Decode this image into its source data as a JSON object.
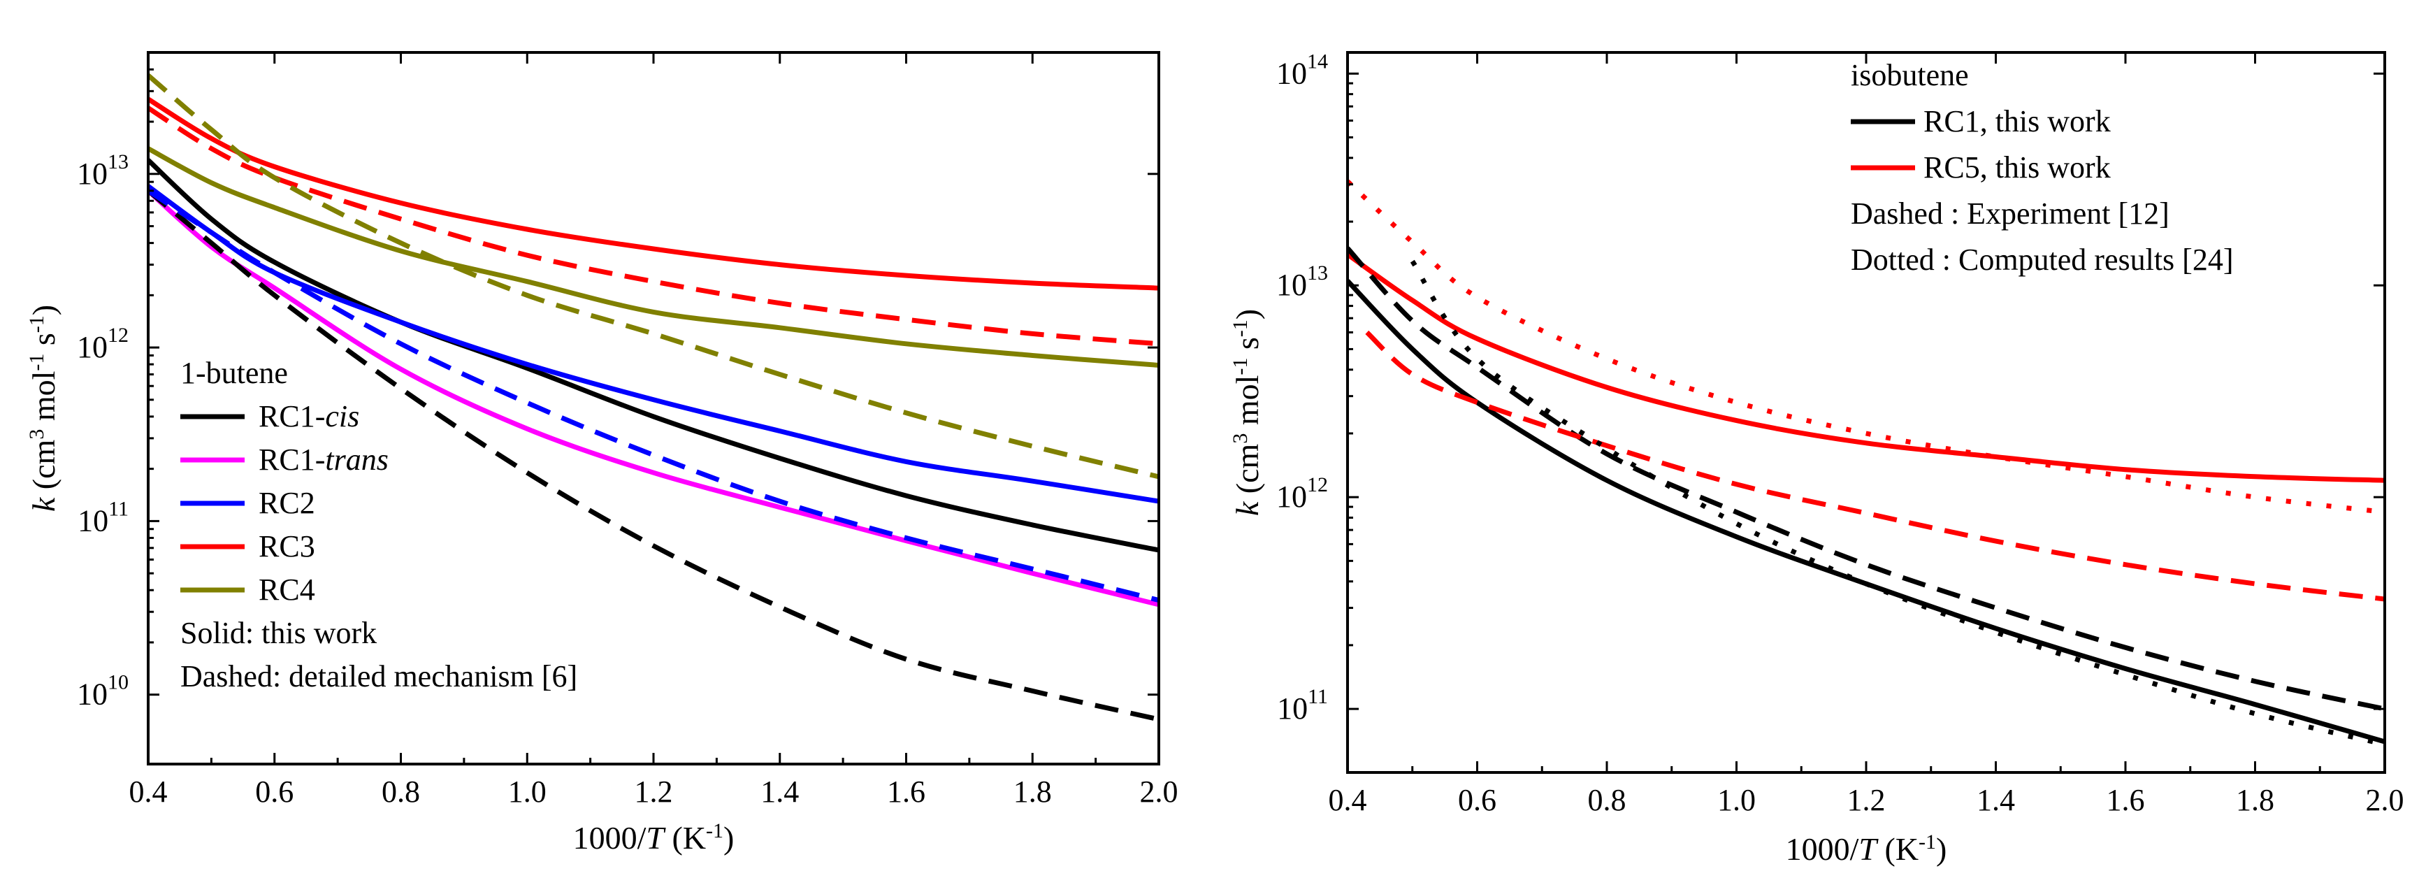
{
  "chart_data": [
    {
      "type": "line",
      "xlabel": "1000/T (K-1)",
      "ylabel": "k (cm3 mol-1 s-1)",
      "xlim": [
        0.4,
        2.0
      ],
      "ylim_log10": [
        9.6,
        13.7
      ],
      "yscale": "log",
      "x_ticks": [
        "0.4",
        "0.6",
        "0.8",
        "1.0",
        "1.2",
        "1.4",
        "1.6",
        "1.8",
        "2.0"
      ],
      "y_ticks": [
        {
          "base": "10",
          "exp": "10",
          "log": 10
        },
        {
          "base": "10",
          "exp": "11",
          "log": 11
        },
        {
          "base": "10",
          "exp": "12",
          "log": 12
        },
        {
          "base": "10",
          "exp": "13",
          "log": 13
        }
      ],
      "legend_title": "1-butene",
      "legend_position": "bottom-left",
      "notes": [
        "Solid: this work",
        "Dashed: detailed mechanism [6]"
      ],
      "series": [
        {
          "name": "RC1-",
          "name_italic": "cis",
          "color": "#000000",
          "dash": "solid",
          "x": [
            0.4,
            0.5,
            0.6,
            0.8,
            1.0,
            1.2,
            1.4,
            1.6,
            1.8,
            2.0
          ],
          "y": [
            12000000000000.0,
            5500000000000.0,
            3100000000000.0,
            1400000000000.0,
            760000000000.0,
            400000000000.0,
            230000000000.0,
            140000000000.0,
            95000000000.0,
            68000000000.0
          ]
        },
        {
          "name": "RC1-",
          "name_italic": "trans",
          "color": "#ff00ff",
          "dash": "solid",
          "x": [
            0.4,
            0.5,
            0.6,
            0.8,
            1.0,
            1.2,
            1.4,
            1.6,
            1.8,
            2.0
          ],
          "y": [
            8000000000000.0,
            3800000000000.0,
            2200000000000.0,
            750000000000.0,
            340000000000.0,
            190000000000.0,
            120000000000.0,
            77000000000.0,
            50000000000.0,
            33000000000.0
          ]
        },
        {
          "name": "RC2",
          "name_italic": "",
          "color": "#0000ff",
          "dash": "solid",
          "x": [
            0.4,
            0.5,
            0.6,
            0.8,
            1.0,
            1.2,
            1.4,
            1.6,
            1.8,
            2.0
          ],
          "y": [
            8500000000000.0,
            4600000000000.0,
            2700000000000.0,
            1400000000000.0,
            800000000000.0,
            500000000000.0,
            330000000000.0,
            220000000000.0,
            170000000000.0,
            130000000000.0
          ]
        },
        {
          "name": "RC3",
          "name_italic": "",
          "color": "#ff0000",
          "dash": "solid",
          "x": [
            0.4,
            0.5,
            0.6,
            0.8,
            1.0,
            1.2,
            1.4,
            1.6,
            1.8,
            2.0
          ],
          "y": [
            27000000000000.0,
            16000000000000.0,
            11000000000000.0,
            6800000000000.0,
            4800000000000.0,
            3700000000000.0,
            3000000000000.0,
            2600000000000.0,
            2350000000000.0,
            2200000000000.0
          ]
        },
        {
          "name": "RC4",
          "name_italic": "",
          "color": "#808000",
          "dash": "solid",
          "x": [
            0.4,
            0.5,
            0.6,
            0.8,
            1.0,
            1.2,
            1.4,
            1.6,
            1.8,
            2.0
          ],
          "y": [
            14000000000000.0,
            8900000000000.0,
            6400000000000.0,
            3600000000000.0,
            2400000000000.0,
            1600000000000.0,
            1300000000000.0,
            1050000000000.0,
            900000000000.0,
            790000000000.0
          ]
        },
        {
          "name": "RC1-cis (dashed)",
          "legend": false,
          "color": "#000000",
          "dash": "dashed",
          "x": [
            0.4,
            0.5,
            0.6,
            0.8,
            1.0,
            1.2,
            1.4,
            1.6,
            1.8,
            2.0
          ],
          "y": [
            8000000000000.0,
            4000000000000.0,
            2000000000000.0,
            580000000000.0,
            190000000000.0,
            72000000000.0,
            32000000000.0,
            16000000000.0,
            10500000000.0,
            7200000000.0
          ]
        },
        {
          "name": "RC2 (dashed)",
          "legend": false,
          "color": "#0000ff",
          "dash": "dashed",
          "x": [
            0.4,
            0.5,
            0.6,
            0.8,
            1.0,
            1.2,
            1.4,
            1.6,
            1.8,
            2.0
          ],
          "y": [
            8000000000000.0,
            4600000000000.0,
            2700000000000.0,
            1050000000000.0,
            480000000000.0,
            240000000000.0,
            130000000000.0,
            80000000000.0,
            53000000000.0,
            35000000000.0
          ]
        },
        {
          "name": "RC3 (dashed)",
          "legend": false,
          "color": "#ff0000",
          "dash": "dashed",
          "x": [
            0.4,
            0.5,
            0.6,
            0.8,
            1.0,
            1.2,
            1.4,
            1.6,
            1.8,
            2.0
          ],
          "y": [
            24000000000000.0,
            14000000000000.0,
            9500000000000.0,
            5500000000000.0,
            3400000000000.0,
            2400000000000.0,
            1800000000000.0,
            1450000000000.0,
            1200000000000.0,
            1050000000000.0
          ]
        },
        {
          "name": "RC4 (dashed)",
          "legend": false,
          "color": "#808000",
          "dash": "dashed",
          "x": [
            0.4,
            0.5,
            0.6,
            0.8,
            1.0,
            1.2,
            1.4,
            1.6,
            1.8,
            2.0
          ],
          "y": [
            37000000000000.0,
            18000000000000.0,
            9500000000000.0,
            4000000000000.0,
            2000000000000.0,
            1200000000000.0,
            700000000000.0,
            420000000000.0,
            270000000000.0,
            180000000000.0
          ]
        }
      ]
    },
    {
      "type": "line",
      "xlabel": "1000/T (K-1)",
      "ylabel": "k (cm3 mol-1 s-1)",
      "xlim": [
        0.4,
        2.0
      ],
      "ylim_log10": [
        10.7,
        14.1
      ],
      "yscale": "log",
      "x_ticks": [
        "0.4",
        "0.6",
        "0.8",
        "1.0",
        "1.2",
        "1.4",
        "1.6",
        "1.8",
        "2.0"
      ],
      "y_ticks": [
        {
          "base": "10",
          "exp": "11",
          "log": 11
        },
        {
          "base": "10",
          "exp": "12",
          "log": 12
        },
        {
          "base": "10",
          "exp": "13",
          "log": 13
        },
        {
          "base": "10",
          "exp": "14",
          "log": 14
        }
      ],
      "legend_title": "isobutene",
      "legend_position": "top-right",
      "notes": [
        "Dashed : Experiment [12]",
        "Dotted : Computed results [24]"
      ],
      "series": [
        {
          "name": "RC1, this work",
          "color": "#000000",
          "dash": "solid",
          "x": [
            0.4,
            0.5,
            0.6,
            0.8,
            1.0,
            1.2,
            1.4,
            1.6,
            1.8,
            2.0
          ],
          "y": [
            10500000000000.0,
            5000000000000.0,
            2800000000000.0,
            1200000000000.0,
            650000000000.0,
            390000000000.0,
            240000000000.0,
            155000000000.0,
            105000000000.0,
            70000000000.0
          ]
        },
        {
          "name": "RC5, this work",
          "color": "#ff0000",
          "dash": "solid",
          "x": [
            0.4,
            0.5,
            0.6,
            0.8,
            1.0,
            1.2,
            1.4,
            1.6,
            1.8,
            2.0
          ],
          "y": [
            14000000000000.0,
            8500000000000.0,
            5600000000000.0,
            3300000000000.0,
            2300000000000.0,
            1800000000000.0,
            1550000000000.0,
            1350000000000.0,
            1250000000000.0,
            1200000000000.0
          ]
        },
        {
          "name": "RC1 experiment (dashed)",
          "legend": false,
          "color": "#000000",
          "dash": "dashed",
          "x": [
            0.4,
            0.5,
            0.6,
            0.8,
            1.0,
            1.2,
            1.4,
            1.6,
            1.8,
            2.0
          ],
          "y": [
            15000000000000.0,
            6800000000000.0,
            4100000000000.0,
            1600000000000.0,
            850000000000.0,
            480000000000.0,
            300000000000.0,
            195000000000.0,
            135000000000.0,
            100000000000.0
          ]
        },
        {
          "name": "RC5 experiment (dashed)",
          "legend": false,
          "color": "#ff0000",
          "dash": "dashed",
          "x": [
            0.43,
            0.5,
            0.6,
            0.8,
            1.0,
            1.2,
            1.4,
            1.6,
            1.8,
            2.0
          ],
          "y": [
            6000000000000.0,
            3800000000000.0,
            2800000000000.0,
            1750000000000.0,
            1150000000000.0,
            840000000000.0,
            620000000000.0,
            480000000000.0,
            390000000000.0,
            330000000000.0
          ]
        },
        {
          "name": "RC1 computed (dotted)",
          "legend": false,
          "color": "#000000",
          "dash": "dotted",
          "x": [
            0.5,
            0.6,
            0.8,
            1.0,
            1.2,
            1.4,
            1.6,
            1.8,
            2.0
          ],
          "y": [
            13000000000000.0,
            4500000000000.0,
            1700000000000.0,
            750000000000.0,
            390000000000.0,
            230000000000.0,
            145000000000.0,
            95000000000.0,
            68000000000.0
          ]
        },
        {
          "name": "RC5 computed (dotted)",
          "legend": false,
          "color": "#ff0000",
          "dash": "dotted",
          "x": [
            0.4,
            0.5,
            0.6,
            0.8,
            1.0,
            1.2,
            1.4,
            1.6,
            1.8,
            2.0
          ],
          "y": [
            31000000000000.0,
            16000000000000.0,
            8800000000000.0,
            4500000000000.0,
            2800000000000.0,
            2000000000000.0,
            1550000000000.0,
            1250000000000.0,
            1000000000000.0,
            850000000000.0
          ]
        }
      ]
    }
  ]
}
